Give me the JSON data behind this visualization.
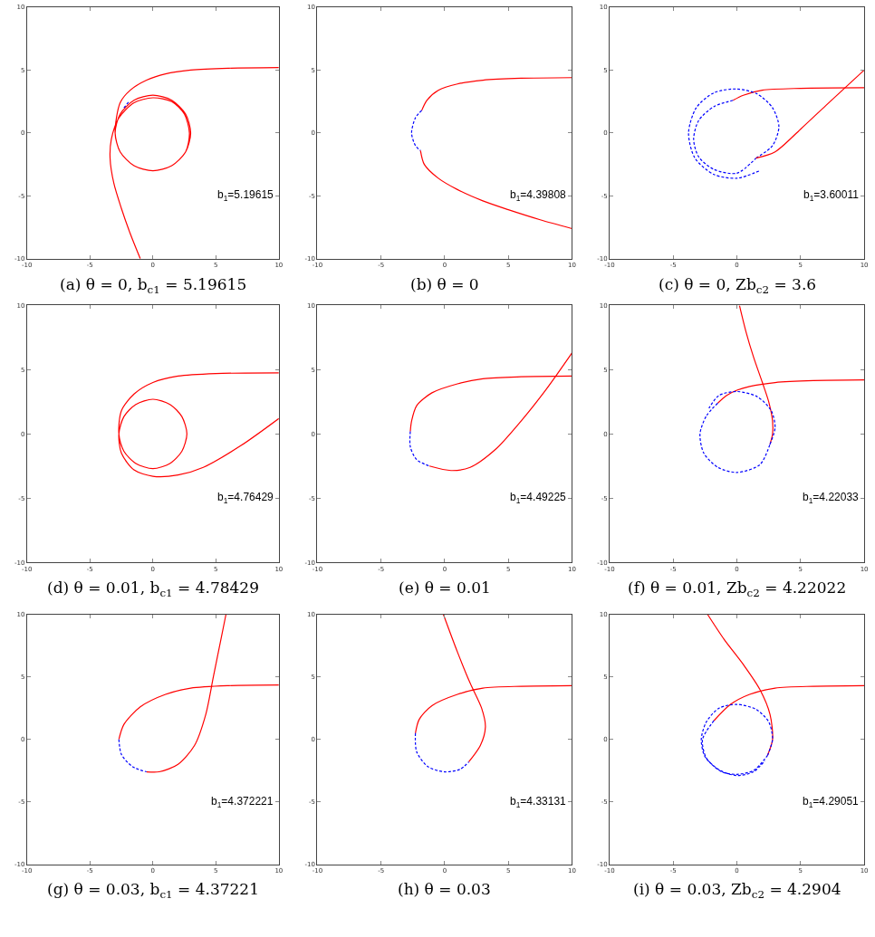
{
  "chart_data": [
    {
      "type": "line",
      "xlim": [
        -10,
        10
      ],
      "ylim": [
        -10,
        10
      ],
      "xticks": [
        -10,
        -5,
        0,
        5,
        10
      ],
      "yticks": [
        -10,
        -5,
        0,
        5,
        10
      ],
      "grid": false,
      "annotations": [
        "b$_{1}$=5.19615",
        "(a) θ = 0, b$_{c1}$ = 5.19615"
      ],
      "series": [
        {
          "color": "#ff0000",
          "line_style": "solid",
          "x": [
            10,
            6,
            3,
            1,
            -0.5,
            -1.8,
            -2.6,
            -3,
            -2.6,
            -1.5,
            0,
            1.5,
            2.6,
            3,
            2.6,
            1.5,
            0,
            -1.5,
            -2.6,
            -3,
            -2.6,
            -1.5,
            0,
            1.5,
            2.6,
            2.9,
            2.5,
            1.5,
            0,
            -1.5,
            -2.7,
            -3.3,
            -3.4,
            -3.1,
            -2.5,
            -1.8,
            -1
          ],
          "values": [
            5.2,
            5.15,
            5,
            4.7,
            4.2,
            3.4,
            2.4,
            0,
            -1.5,
            -2.6,
            -3,
            -2.6,
            -1.5,
            0,
            1.5,
            2.6,
            3,
            2.6,
            1.5,
            0,
            -1.5,
            -2.6,
            -3,
            -2.6,
            -1.5,
            0,
            1.5,
            2.5,
            2.8,
            2.4,
            1.2,
            -0.5,
            -2,
            -4,
            -6,
            -8,
            -10
          ]
        },
        {
          "color": "#0000ff",
          "line_style": "dashed",
          "x": [
            -2.3,
            -1.9
          ],
          "values": [
            2,
            2.5
          ]
        }
      ]
    },
    {
      "type": "line",
      "xlim": [
        -10,
        10
      ],
      "ylim": [
        -10,
        10
      ],
      "xticks": [
        -10,
        -5,
        0,
        5,
        10
      ],
      "yticks": [
        -10,
        -5,
        0,
        5,
        10
      ],
      "grid": false,
      "annotations": [
        "b$_{1}$=4.39808",
        "(b) θ = 0"
      ],
      "series": [
        {
          "color": "#ff0000",
          "line_style": "solid",
          "x": [
            10,
            6,
            3,
            1,
            -0.5,
            -1.4,
            -1.8
          ],
          "values": [
            4.4,
            4.35,
            4.2,
            3.9,
            3.4,
            2.6,
            1.8
          ]
        },
        {
          "color": "#0000ff",
          "line_style": "dashed",
          "x": [
            -1.8,
            -2.3,
            -2.6,
            -2.3,
            -1.9
          ],
          "values": [
            1.8,
            1.2,
            0,
            -1,
            -1.4
          ]
        },
        {
          "color": "#ff0000",
          "line_style": "solid",
          "x": [
            -1.9,
            -1.6,
            -0.5,
            1,
            3,
            5,
            7.5,
            10
          ],
          "values": [
            -1.4,
            -2.5,
            -3.6,
            -4.5,
            -5.4,
            -6.1,
            -6.9,
            -7.6
          ]
        }
      ]
    },
    {
      "type": "line",
      "xlim": [
        -10,
        10
      ],
      "ylim": [
        -10,
        10
      ],
      "xticks": [
        -10,
        -5,
        0,
        5,
        10
      ],
      "yticks": [
        -10,
        -5,
        0,
        5,
        10
      ],
      "grid": false,
      "annotations": [
        "b$_{1}$=3.60011",
        "(c) θ = 0, Zb$_{c2}$ = 3.6"
      ],
      "series": [
        {
          "color": "#ff0000",
          "line_style": "solid",
          "x": [
            10,
            5,
            2,
            0.5,
            -0.3
          ],
          "values": [
            3.6,
            3.55,
            3.4,
            3,
            2.6
          ]
        },
        {
          "color": "#0000ff",
          "line_style": "dashed",
          "x": [
            -0.3,
            -1.8,
            -3,
            -3.4,
            -3,
            -1.8,
            0,
            1.5
          ],
          "values": [
            2.6,
            2.1,
            1,
            -0.5,
            -1.9,
            -2.9,
            -3.2,
            -2
          ]
        },
        {
          "color": "#0000ff",
          "line_style": "dashed",
          "x": [
            1.5,
            2.8,
            3.3,
            2.8,
            1.6,
            0,
            -1.8,
            -3.2,
            -3.8,
            -3.3,
            -1.8,
            0,
            1.8
          ],
          "values": [
            -2,
            -1,
            0.5,
            2,
            3.1,
            3.5,
            3.2,
            2,
            0,
            -2,
            -3.3,
            -3.6,
            -3
          ]
        },
        {
          "color": "#ff0000",
          "line_style": "solid",
          "x": [
            1.5,
            3,
            5,
            7,
            10
          ],
          "values": [
            -2,
            -1.5,
            0.3,
            2.2,
            5
          ]
        }
      ]
    },
    {
      "type": "line",
      "xlim": [
        -10,
        10
      ],
      "ylim": [
        -10,
        10
      ],
      "xticks": [
        -10,
        -5,
        0,
        5,
        10
      ],
      "yticks": [
        -10,
        -5,
        0,
        5,
        10
      ],
      "grid": false,
      "annotations": [
        "b$_{1}$=4.76429",
        "(d) θ = 0.01, b$_{c1}$ = 4.78429"
      ],
      "series": [
        {
          "color": "#ff0000",
          "line_style": "solid",
          "x": [
            10,
            5,
            2,
            0,
            -1.5,
            -2.5,
            -2.7,
            -2.3,
            -1.35,
            0,
            1.35,
            2.3,
            2.7,
            2.3,
            1.35,
            0,
            -1.35,
            -2.3,
            -2.7,
            -2.3,
            -1.35,
            0,
            1.35,
            2.3,
            2.7,
            2.3,
            1.35,
            0,
            -1.35,
            -2.3,
            -2.7,
            -2.5,
            -1.5,
            0,
            2,
            4,
            7,
            10
          ],
          "values": [
            4.75,
            4.7,
            4.5,
            4,
            3.1,
            1.8,
            0,
            -1.35,
            -2.3,
            -2.7,
            -2.3,
            -1.35,
            0,
            1.35,
            2.3,
            2.7,
            2.3,
            1.35,
            0,
            -1.35,
            -2.3,
            -2.7,
            -2.3,
            -1.35,
            0,
            1.35,
            2.3,
            2.7,
            2.3,
            1.35,
            0,
            -1.5,
            -2.8,
            -3.3,
            -3.2,
            -2.6,
            -0.9,
            1.2
          ]
        }
      ]
    },
    {
      "type": "line",
      "xlim": [
        -10,
        10
      ],
      "ylim": [
        -10,
        10
      ],
      "xticks": [
        -10,
        -5,
        0,
        5,
        10
      ],
      "yticks": [
        -10,
        -5,
        0,
        5,
        10
      ],
      "grid": false,
      "annotations": [
        "b$_{1}$=4.49225",
        "(e) θ = 0.01"
      ],
      "series": [
        {
          "color": "#ff0000",
          "line_style": "solid",
          "x": [
            10,
            6,
            3,
            1,
            -1,
            -2.2,
            -2.6,
            -2.7
          ],
          "values": [
            4.5,
            4.45,
            4.3,
            3.9,
            3.2,
            2.2,
            1,
            0.2
          ]
        },
        {
          "color": "#0000ff",
          "line_style": "dashed",
          "x": [
            -2.7,
            -2.7,
            -2.2,
            -1.2
          ],
          "values": [
            0.2,
            -1,
            -2,
            -2.5
          ]
        },
        {
          "color": "#ff0000",
          "line_style": "solid",
          "x": [
            -1.2,
            0.5,
            2,
            4,
            6,
            8,
            10
          ],
          "values": [
            -2.5,
            -2.85,
            -2.6,
            -1.2,
            1,
            3.5,
            6.3
          ]
        }
      ]
    },
    {
      "type": "line",
      "xlim": [
        -10,
        10
      ],
      "ylim": [
        -10,
        10
      ],
      "xticks": [
        -10,
        -5,
        0,
        5,
        10
      ],
      "yticks": [
        -10,
        -5,
        0,
        5,
        10
      ],
      "grid": false,
      "annotations": [
        "b$_{1}$=4.22033",
        "(f) θ = 0.01, Zb$_{c2}$ = 4.22022"
      ],
      "series": [
        {
          "color": "#ff0000",
          "line_style": "solid",
          "x": [
            0.2,
            0.7,
            1.3,
            2,
            2.5,
            2.8,
            2.8,
            2.6
          ],
          "values": [
            10,
            8,
            6,
            4,
            2.5,
            1,
            0,
            -0.8
          ]
        },
        {
          "color": "#ff0000",
          "line_style": "solid",
          "x": [
            10,
            6,
            3,
            1,
            0,
            -0.8,
            -1.5
          ],
          "values": [
            4.2,
            4.15,
            4,
            3.7,
            3.4,
            3,
            2.4
          ]
        },
        {
          "color": "#0000ff",
          "line_style": "dashed",
          "x": [
            -1.5,
            -2.4,
            -2.9,
            -2.6,
            -1.5,
            0,
            1.8,
            2.6
          ],
          "values": [
            2.4,
            1.4,
            0,
            -1.5,
            -2.6,
            -3,
            -2.4,
            -0.8
          ]
        },
        {
          "color": "#0000ff",
          "line_style": "dashed",
          "x": [
            2.6,
            3,
            2.7,
            1.6,
            0,
            -1.4,
            -2.2
          ],
          "values": [
            -0.8,
            0.5,
            1.8,
            2.9,
            3.3,
            3,
            2
          ]
        }
      ]
    },
    {
      "type": "line",
      "xlim": [
        -10,
        10
      ],
      "ylim": [
        -10,
        10
      ],
      "xticks": [
        -10,
        -5,
        0,
        5,
        10
      ],
      "yticks": [
        -10,
        -5,
        0,
        5,
        10
      ],
      "grid": false,
      "annotations": [
        "b$_{1}$=4.372221",
        "(g) θ = 0.03, b$_{c1}$ = 4.37221"
      ],
      "series": [
        {
          "color": "#ff0000",
          "line_style": "solid",
          "x": [
            10,
            6,
            3,
            1,
            -1,
            -2.3,
            -2.7
          ],
          "values": [
            4.35,
            4.3,
            4.1,
            3.6,
            2.6,
            1.2,
            0
          ]
        },
        {
          "color": "#0000ff",
          "line_style": "dashed",
          "x": [
            -2.7,
            -2.5,
            -1.6,
            -0.5
          ],
          "values": [
            0,
            -1.2,
            -2.2,
            -2.6
          ]
        },
        {
          "color": "#ff0000",
          "line_style": "solid",
          "x": [
            -0.5,
            0.5,
            2,
            3.3,
            4.2,
            4.8,
            5.4,
            5.8
          ],
          "values": [
            -2.6,
            -2.6,
            -2,
            -0.5,
            2,
            5,
            8,
            10
          ]
        }
      ]
    },
    {
      "type": "line",
      "xlim": [
        -10,
        10
      ],
      "ylim": [
        -10,
        10
      ],
      "xticks": [
        -10,
        -5,
        0,
        5,
        10
      ],
      "yticks": [
        -10,
        -5,
        0,
        5,
        10
      ],
      "grid": false,
      "annotations": [
        "b$_{1}$=4.33131",
        "(h) θ = 0.03"
      ],
      "series": [
        {
          "color": "#ff0000",
          "line_style": "solid",
          "x": [
            10,
            6,
            3,
            1,
            -1,
            -2,
            -2.3
          ],
          "values": [
            4.3,
            4.25,
            4.1,
            3.6,
            2.7,
            1.6,
            0.5
          ]
        },
        {
          "color": "#0000ff",
          "line_style": "dashed",
          "x": [
            -2.3,
            -2.2,
            -1.3,
            0,
            1.2,
            1.9
          ],
          "values": [
            0.5,
            -1,
            -2.2,
            -2.6,
            -2.4,
            -1.8
          ]
        },
        {
          "color": "#ff0000",
          "line_style": "solid",
          "x": [
            1.9,
            2.8,
            3.2,
            2.9,
            2,
            1,
            -0.1
          ],
          "values": [
            -1.8,
            -0.5,
            1,
            2.5,
            4.5,
            7,
            10
          ]
        }
      ]
    },
    {
      "type": "line",
      "xlim": [
        -10,
        10
      ],
      "ylim": [
        -10,
        10
      ],
      "xticks": [
        -10,
        -5,
        0,
        5,
        10
      ],
      "yticks": [
        -10,
        -5,
        0,
        5,
        10
      ],
      "grid": false,
      "annotations": [
        "b$_{1}$=4.29051",
        "(i) θ = 0.03, Zb$_{c2}$ = 4.2904"
      ],
      "series": [
        {
          "color": "#ff0000",
          "line_style": "solid",
          "x": [
            10,
            6,
            3,
            1,
            -0.5,
            -1.8
          ],
          "values": [
            4.3,
            4.25,
            4.1,
            3.6,
            2.8,
            1.5
          ]
        },
        {
          "color": "#ff0000",
          "line_style": "solid",
          "x": [
            -2.3,
            -1,
            0.5,
            1.8,
            2.6,
            2.8,
            2.4
          ],
          "values": [
            10,
            8,
            6,
            4,
            2,
            0,
            -1.3
          ]
        },
        {
          "color": "#0000ff",
          "line_style": "dashed",
          "x": [
            -1.8,
            -2.7,
            -2.4,
            -1.2,
            0,
            1.3,
            2.4
          ],
          "values": [
            1.5,
            0,
            -1.5,
            -2.6,
            -2.8,
            -2.5,
            -1.3
          ]
        },
        {
          "color": "#0000ff",
          "line_style": "dashed",
          "x": [
            2.4,
            2.8,
            2.5,
            1.5,
            0,
            -1.4,
            -2.4,
            -2.8,
            -2.5,
            -1.3,
            0,
            1.3,
            2.2
          ],
          "values": [
            -1.3,
            0,
            1.4,
            2.4,
            2.8,
            2.5,
            1.4,
            0,
            -1.4,
            -2.5,
            -2.9,
            -2.6,
            -1.7
          ]
        }
      ]
    }
  ]
}
